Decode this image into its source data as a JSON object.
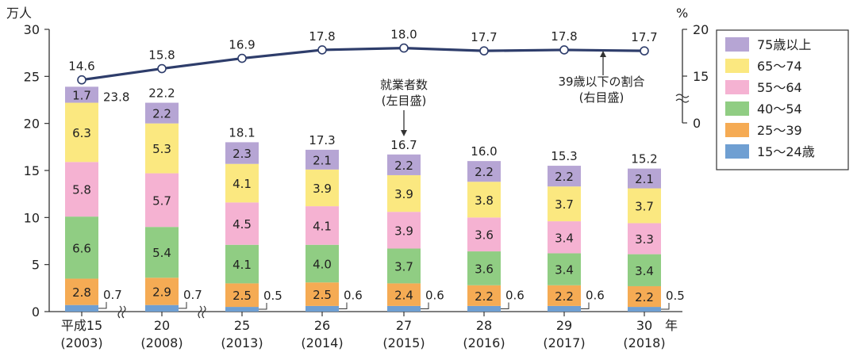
{
  "chart_data": {
    "type": "bar",
    "stacked": true,
    "secondary_type": "line",
    "y_unit": "万人",
    "y2_unit": "%",
    "x_unit": "年",
    "ylim": [
      0,
      30
    ],
    "yticks": [
      "0",
      "5",
      "10",
      "15",
      "20",
      "25",
      "30"
    ],
    "y2lim": [
      0,
      20
    ],
    "y2ticks": [
      "0",
      "15",
      "20"
    ],
    "categories": [
      {
        "era": "平成15",
        "year": "(2003)"
      },
      {
        "era": "20",
        "year": "(2008)"
      },
      {
        "era": "25",
        "year": "(2013)"
      },
      {
        "era": "26",
        "year": "(2014)"
      },
      {
        "era": "27",
        "year": "(2015)"
      },
      {
        "era": "28",
        "year": "(2016)"
      },
      {
        "era": "29",
        "year": "(2017)"
      },
      {
        "era": "30",
        "year": "(2018)"
      }
    ],
    "series": [
      {
        "name": "15～24歳",
        "color": "#6f9fd2",
        "values": [
          0.7,
          0.7,
          0.5,
          0.6,
          0.6,
          0.6,
          0.6,
          0.5
        ],
        "labels": [
          "0.7",
          "0.7",
          "0.5",
          "0.6",
          "0.6",
          "0.6",
          "0.6",
          "0.5"
        ]
      },
      {
        "name": "25～39",
        "color": "#f5ab54",
        "values": [
          2.8,
          2.9,
          2.5,
          2.5,
          2.4,
          2.2,
          2.2,
          2.2
        ],
        "labels": [
          "2.8",
          "2.9",
          "2.5",
          "2.5",
          "2.4",
          "2.2",
          "2.2",
          "2.2"
        ]
      },
      {
        "name": "40～54",
        "color": "#90cd83",
        "values": [
          6.6,
          5.4,
          4.1,
          4.0,
          3.7,
          3.6,
          3.4,
          3.4
        ],
        "labels": [
          "6.6",
          "5.4",
          "4.1",
          "4.0",
          "3.7",
          "3.6",
          "3.4",
          "3.4"
        ]
      },
      {
        "name": "55～64",
        "color": "#f5b2d2",
        "values": [
          5.8,
          5.7,
          4.5,
          4.1,
          3.9,
          3.6,
          3.4,
          3.3
        ],
        "labels": [
          "5.8",
          "5.7",
          "4.5",
          "4.1",
          "3.9",
          "3.6",
          "3.4",
          "3.3"
        ]
      },
      {
        "name": "65～74",
        "color": "#fbe880",
        "values": [
          6.3,
          5.3,
          4.1,
          3.9,
          3.9,
          3.8,
          3.7,
          3.7
        ],
        "labels": [
          "6.3",
          "5.3",
          "4.1",
          "3.9",
          "3.9",
          "3.8",
          "3.7",
          "3.7"
        ]
      },
      {
        "name": "75歳以上",
        "color": "#b6a5d4",
        "values": [
          1.7,
          2.2,
          2.3,
          2.1,
          2.2,
          2.2,
          2.2,
          2.1
        ],
        "labels": [
          "1.7",
          "2.2",
          "2.3",
          "2.1",
          "2.2",
          "2.2",
          "2.2",
          "2.1"
        ]
      }
    ],
    "totals": [
      23.8,
      22.2,
      18.1,
      17.3,
      16.7,
      16.0,
      15.3,
      15.2
    ],
    "total_labels": [
      "23.8",
      "22.2",
      "18.1",
      "17.3",
      "16.7",
      "16.0",
      "15.3",
      "15.2"
    ],
    "line": {
      "name": "39歳以下の割合",
      "color": "#2e3d6b",
      "values": [
        14.6,
        15.8,
        16.9,
        17.8,
        18.0,
        17.7,
        17.8,
        17.7
      ],
      "labels": [
        "14.6",
        "15.8",
        "16.9",
        "17.8",
        "18.0",
        "17.7",
        "17.8",
        "17.7"
      ]
    },
    "annotations": {
      "bars": [
        "就業者数",
        "(左目盛)"
      ],
      "line": [
        "39歳以下の割合",
        "(右目盛)"
      ]
    },
    "legend_order": [
      "75歳以上",
      "65～74",
      "55～64",
      "40～54",
      "25～39",
      "15～24歳"
    ],
    "legend_position": "right"
  }
}
